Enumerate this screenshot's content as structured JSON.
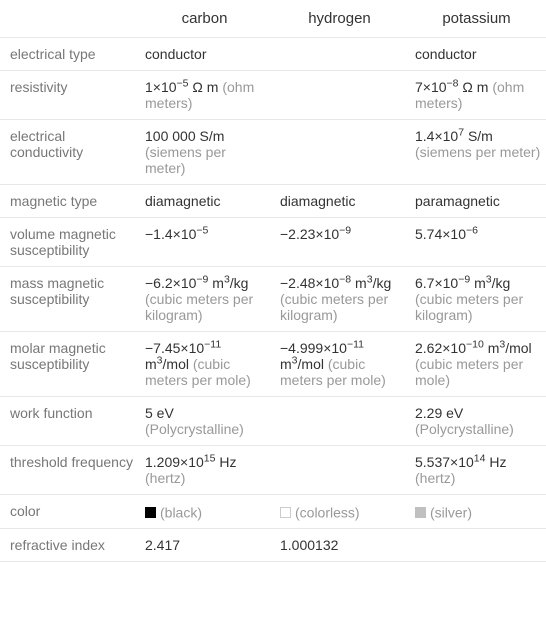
{
  "columns": [
    "",
    "carbon",
    "hydrogen",
    "potassium"
  ],
  "rows": {
    "electrical_type": {
      "label": "electrical type",
      "carbon": "conductor",
      "hydrogen": "",
      "potassium": "conductor"
    },
    "resistivity": {
      "label": "resistivity",
      "carbon_val": "1×10",
      "carbon_exp": "−5",
      "carbon_unit": " Ω m",
      "carbon_note": "(ohm meters)",
      "hydrogen": "",
      "potassium_val": "7×10",
      "potassium_exp": "−8",
      "potassium_unit": " Ω m",
      "potassium_note": "(ohm meters)"
    },
    "electrical_conductivity": {
      "label": "electrical conductivity",
      "carbon_val": "100 000 S/m",
      "carbon_note": "(siemens per meter)",
      "hydrogen": "",
      "potassium_val": "1.4×10",
      "potassium_exp": "7",
      "potassium_unit": " S/m",
      "potassium_note": "(siemens per meter)"
    },
    "magnetic_type": {
      "label": "magnetic type",
      "carbon": "diamagnetic",
      "hydrogen": "diamagnetic",
      "potassium": "paramagnetic"
    },
    "volume_magnetic_susceptibility": {
      "label": "volume magnetic susceptibility",
      "carbon_val": "−1.4×10",
      "carbon_exp": "−5",
      "hydrogen_val": "−2.23×10",
      "hydrogen_exp": "−9",
      "potassium_val": "5.74×10",
      "potassium_exp": "−6"
    },
    "mass_magnetic_susceptibility": {
      "label": "mass magnetic susceptibility",
      "carbon_val": "−6.2×10",
      "carbon_exp": "−9",
      "carbon_unit": " m",
      "carbon_unit_exp": "3",
      "carbon_unit2": "/kg",
      "carbon_note": "(cubic meters per kilogram)",
      "hydrogen_val": "−2.48×10",
      "hydrogen_exp": "−8",
      "hydrogen_unit": " m",
      "hydrogen_unit_exp": "3",
      "hydrogen_unit2": "/kg",
      "hydrogen_note": "(cubic meters per kilogram)",
      "potassium_val": "6.7×10",
      "potassium_exp": "−9",
      "potassium_unit": " m",
      "potassium_unit_exp": "3",
      "potassium_unit2": "/kg",
      "potassium_note": "(cubic meters per kilogram)"
    },
    "molar_magnetic_susceptibility": {
      "label": "molar magnetic susceptibility",
      "carbon_val": "−7.45×10",
      "carbon_exp": "−11",
      "carbon_unit": " m",
      "carbon_unit_exp": "3",
      "carbon_unit2": "/mol",
      "carbon_note": "(cubic meters per mole)",
      "hydrogen_val": "−4.999×10",
      "hydrogen_exp": "−11",
      "hydrogen_unit": " m",
      "hydrogen_unit_exp": "3",
      "hydrogen_unit2": "/mol",
      "hydrogen_note": "(cubic meters per mole)",
      "potassium_val": "2.62×10",
      "potassium_exp": "−10",
      "potassium_unit": " m",
      "potassium_unit_exp": "3",
      "potassium_unit2": "/mol",
      "potassium_note": "(cubic meters per mole)"
    },
    "work_function": {
      "label": "work function",
      "carbon_val": "5 eV",
      "carbon_note": "(Polycrystalline)",
      "hydrogen": "",
      "potassium_val": "2.29 eV",
      "potassium_note": "(Polycrystalline)"
    },
    "threshold_frequency": {
      "label": "threshold frequency",
      "carbon_val": "1.209×10",
      "carbon_exp": "15",
      "carbon_unit": " Hz",
      "carbon_note": "(hertz)",
      "hydrogen": "",
      "potassium_val": "5.537×10",
      "potassium_exp": "14",
      "potassium_unit": " Hz",
      "potassium_note": "(hertz)"
    },
    "color": {
      "label": "color",
      "carbon": "(black)",
      "hydrogen": "(colorless)",
      "potassium": "(silver)"
    },
    "refractive_index": {
      "label": "refractive index",
      "carbon": "2.417",
      "hydrogen": "1.000132",
      "potassium": ""
    }
  }
}
